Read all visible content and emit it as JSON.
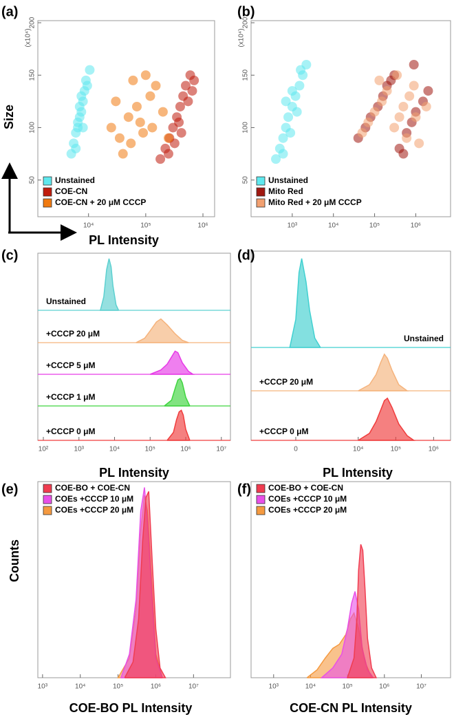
{
  "chart_data": [
    {
      "type": "scatter",
      "label": "(a)",
      "ylabel": "Size",
      "xlabel": "PL Intensity",
      "y_multiplier": "(x10⁴)",
      "xscale": "log",
      "xlim": [
        1300,
        1600000
      ],
      "ylim": [
        15,
        202
      ],
      "xticks": [
        {
          "value": 10000,
          "label": "10⁴"
        },
        {
          "value": 100000,
          "label": "10⁵"
        },
        {
          "value": 1000000,
          "label": "10⁶"
        }
      ],
      "yticks": [
        50,
        100,
        150,
        200
      ],
      "series": [
        {
          "name": "Unstained",
          "color": "#5fe8ee",
          "x": [
            5000,
            5500,
            6000,
            6500,
            7000,
            7500,
            8000,
            8500,
            9000,
            6000,
            7000,
            8000,
            9500,
            10500,
            6500,
            7500
          ],
          "values": [
            75,
            85,
            95,
            100,
            110,
            115,
            125,
            135,
            145,
            80,
            120,
            100,
            140,
            155,
            105,
            130
          ]
        },
        {
          "name": "COE-CN",
          "color": "#c01c0c",
          "x": [
            180000,
            220000,
            260000,
            300000,
            350000,
            400000,
            450000,
            500000,
            600000,
            700000,
            250000,
            380000,
            550000,
            320000,
            420000,
            650000
          ],
          "values": [
            70,
            80,
            90,
            100,
            110,
            120,
            130,
            140,
            150,
            145,
            75,
            105,
            125,
            85,
            95,
            135
          ]
        },
        {
          "name": "COE-CN + 20 μM CCCP",
          "color": "#f07a10",
          "x": [
            25000,
            35000,
            50000,
            70000,
            90000,
            120000,
            150000,
            40000,
            60000,
            80000,
            100000,
            200000,
            30000,
            55000,
            130000,
            250000
          ],
          "values": [
            100,
            90,
            110,
            120,
            95,
            130,
            140,
            75,
            145,
            105,
            150,
            115,
            125,
            85,
            100,
            90
          ]
        }
      ]
    },
    {
      "type": "scatter",
      "label": "(b)",
      "y_multiplier": "(x10⁴)",
      "xscale": "log",
      "xlim": [
        100,
        7000000
      ],
      "ylim": [
        15,
        202
      ],
      "xticks": [
        {
          "value": 1000,
          "label": "10³"
        },
        {
          "value": 10000,
          "label": "10⁴"
        },
        {
          "value": 100000,
          "label": "10⁵"
        },
        {
          "value": 1000000,
          "label": "10⁶"
        }
      ],
      "yticks": [
        50,
        100,
        150,
        200
      ],
      "series": [
        {
          "name": "Unstained",
          "color": "#5fe8ee",
          "x": [
            400,
            500,
            600,
            700,
            800,
            1000,
            1200,
            1500,
            1800,
            2200,
            600,
            900,
            1300,
            700,
            1000,
            1600
          ],
          "values": [
            70,
            80,
            90,
            100,
            110,
            120,
            130,
            140,
            150,
            160,
            75,
            95,
            115,
            125,
            135,
            155
          ]
        },
        {
          "name": "Mito Red",
          "color": "#a01810",
          "x": [
            40000,
            60000,
            80000,
            120000,
            160000,
            200000,
            300000,
            400000,
            600000,
            800000,
            1000000,
            1500000,
            2000000,
            250000,
            500000,
            900000
          ],
          "values": [
            90,
            100,
            110,
            120,
            130,
            140,
            150,
            80,
            95,
            105,
            115,
            125,
            135,
            145,
            75,
            160
          ]
        },
        {
          "name": "Mito Red + 20 μM CCCP",
          "color": "#f2a070",
          "x": [
            50000,
            70000,
            100000,
            150000,
            200000,
            300000,
            400000,
            500000,
            700000,
            900000,
            1200000,
            1800000,
            130000,
            350000,
            600000,
            1000000
          ],
          "values": [
            95,
            105,
            115,
            125,
            135,
            100,
            110,
            120,
            130,
            140,
            85,
            120,
            145,
            150,
            90,
            110
          ]
        }
      ]
    },
    {
      "type": "ridgeline",
      "label": "(c)",
      "xlabel": "PL Intensity",
      "xscale": "log",
      "xlim": [
        70,
        18000000
      ],
      "ylim": [
        0,
        100
      ],
      "xticks": [
        {
          "value": 100,
          "label": "10²"
        },
        {
          "value": 1000,
          "label": "10³"
        },
        {
          "value": 10000,
          "label": "10⁴"
        },
        {
          "value": 100000,
          "label": "10⁵"
        },
        {
          "value": 1000000,
          "label": "10⁶"
        },
        {
          "value": 10000000,
          "label": "10⁷"
        }
      ],
      "series": [
        {
          "name": "Unstained",
          "color": "#5cd0d0",
          "x": [
            4000,
            5000,
            6000,
            7000,
            8000,
            9000,
            11000,
            13000
          ],
          "values": [
            0,
            25,
            75,
            95,
            80,
            45,
            10,
            0
          ]
        },
        {
          "name": "+CCCP 20 μM",
          "color": "#f5b37c",
          "x": [
            40000,
            70000,
            100000,
            150000,
            200000,
            300000,
            500000,
            800000,
            1200000
          ],
          "values": [
            0,
            15,
            40,
            70,
            80,
            60,
            30,
            8,
            0
          ]
        },
        {
          "name": "+CCCP 5 μM",
          "color": "#e63be6",
          "x": [
            100000,
            200000,
            300000,
            400000,
            500000,
            600000,
            800000,
            1200000,
            1600000
          ],
          "values": [
            0,
            15,
            35,
            60,
            80,
            75,
            40,
            10,
            0
          ]
        },
        {
          "name": "+CCCP 1 μM",
          "color": "#3ed43e",
          "x": [
            250000,
            400000,
            500000,
            600000,
            700000,
            800000,
            1000000,
            1300000
          ],
          "values": [
            0,
            20,
            60,
            90,
            95,
            80,
            30,
            0
          ]
        },
        {
          "name": "+CCCP 0 μM",
          "color": "#f03c3c",
          "x": [
            300000,
            450000,
            550000,
            650000,
            750000,
            850000,
            1000000,
            1300000
          ],
          "values": [
            0,
            25,
            65,
            90,
            95,
            80,
            35,
            0
          ]
        }
      ]
    },
    {
      "type": "ridgeline",
      "label": "(d)",
      "xlabel": "PL Intensity",
      "xscale": "symlog",
      "linthresh": 230,
      "xlim": [
        -3250,
        2800000
      ],
      "ylim": [
        0,
        100
      ],
      "xticks": [
        0,
        {
          "value": 10000,
          "label": "10⁴"
        },
        {
          "value": 100000,
          "label": "10⁵"
        },
        {
          "value": 1000000,
          "label": "10⁶"
        }
      ],
      "series": [
        {
          "name": "Unstained",
          "color": "#40d0d0",
          "x": [
            -100,
            0,
            50,
            100,
            200,
            300,
            500,
            800
          ],
          "values": [
            0,
            30,
            80,
            95,
            70,
            40,
            10,
            0
          ]
        },
        {
          "name": "+CCCP 20 μM",
          "color": "#f5b37c",
          "x": [
            10000,
            20000,
            30000,
            40000,
            50000,
            60000,
            80000,
            120000,
            200000
          ],
          "values": [
            0,
            15,
            40,
            70,
            90,
            80,
            50,
            15,
            0
          ]
        },
        {
          "name": "+CCCP 0 μM",
          "color": "#f03c3c",
          "x": [
            10000,
            20000,
            30000,
            40000,
            50000,
            60000,
            80000,
            120000,
            200000,
            300000
          ],
          "values": [
            0,
            15,
            40,
            65,
            85,
            90,
            70,
            35,
            10,
            0
          ]
        }
      ]
    },
    {
      "type": "area",
      "label": "(e)",
      "xlabel": "COE-BO PL Intensity",
      "ylabel": "Counts",
      "xscale": "log",
      "xlim": [
        750,
        95000000
      ],
      "ylim": [
        0,
        100
      ],
      "xticks": [
        {
          "value": 1000,
          "label": "10³"
        },
        {
          "value": 10000,
          "label": "10⁴"
        },
        {
          "value": 100000,
          "label": "10⁵"
        },
        {
          "value": 1000000,
          "label": "10⁶"
        },
        {
          "value": 10000000,
          "label": "10⁷"
        }
      ],
      "series": [
        {
          "name": "COE-BO + COE-CN",
          "color": "#f03c50",
          "x": [
            150000,
            250000,
            350000,
            450000,
            550000,
            650000,
            800000,
            1000000,
            1300000,
            1800000
          ],
          "values": [
            0,
            8,
            30,
            70,
            92,
            95,
            60,
            25,
            5,
            0
          ]
        },
        {
          "name": "COEs +CCCP 10 μM",
          "color": "#e850e8",
          "x": [
            120000,
            200000,
            300000,
            400000,
            500000,
            600000,
            800000,
            1000000,
            1500000
          ],
          "values": [
            0,
            12,
            40,
            85,
            97,
            80,
            40,
            10,
            0
          ]
        },
        {
          "name": "COEs +CCCP 20 μM",
          "color": "#f59a40",
          "x": [
            100000,
            200000,
            300000,
            400000,
            500000,
            600000,
            800000,
            1000000,
            1500000
          ],
          "values": [
            0,
            10,
            35,
            75,
            93,
            85,
            45,
            12,
            0
          ]
        }
      ]
    },
    {
      "type": "area",
      "label": "(f)",
      "xlabel": "COE-CN PL Intensity",
      "xscale": "log",
      "xlim": [
        245,
        62000000
      ],
      "ylim": [
        0,
        100
      ],
      "xticks": [
        {
          "value": 1000,
          "label": "10³"
        },
        {
          "value": 10000,
          "label": "10⁴"
        },
        {
          "value": 100000,
          "label": "10⁵"
        },
        {
          "value": 1000000,
          "label": "10⁶"
        },
        {
          "value": 10000000,
          "label": "10⁷"
        }
      ],
      "series": [
        {
          "name": "COE-BO + COE-CN",
          "color": "#f03c50",
          "x": [
            100000,
            150000,
            180000,
            200000,
            230000,
            260000,
            300000,
            350000,
            450000,
            600000
          ],
          "values": [
            0,
            10,
            30,
            55,
            68,
            65,
            45,
            20,
            5,
            0
          ]
        },
        {
          "name": "COEs +CCCP 10 μM",
          "color": "#e850e8",
          "x": [
            20000,
            40000,
            70000,
            100000,
            130000,
            160000,
            200000,
            250000,
            350000,
            500000
          ],
          "values": [
            0,
            5,
            12,
            25,
            38,
            44,
            35,
            15,
            4,
            0
          ]
        },
        {
          "name": "COEs +CCCP 20 μM",
          "color": "#f59a40",
          "x": [
            8000,
            15000,
            25000,
            40000,
            60000,
            90000,
            120000,
            150000,
            200000,
            300000,
            450000
          ],
          "values": [
            0,
            4,
            10,
            15,
            17,
            22,
            30,
            33,
            25,
            8,
            0
          ]
        }
      ]
    }
  ]
}
